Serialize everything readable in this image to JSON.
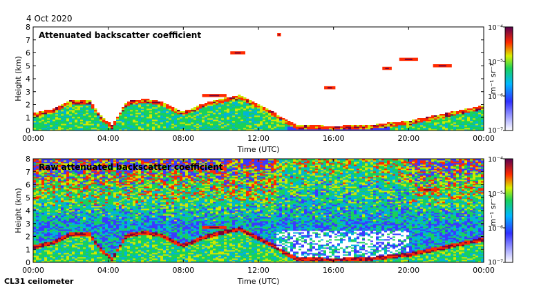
{
  "date": "4 Oct 2020",
  "footer": "CL31 ceilometer",
  "palette": [
    "#ffffff",
    "#3a3aff",
    "#00b4d8",
    "#19d15a",
    "#cfe800",
    "#ff2a00",
    "#7a0035"
  ],
  "chart_data": [
    {
      "type": "heatmap",
      "title": "Attenuated backscatter coefficient",
      "xlabel": "Time (UTC)",
      "ylabel": "Height (km)",
      "xlim": [
        0,
        24
      ],
      "ylim": [
        0,
        8
      ],
      "x_ticks": [
        "00:00",
        "04:00",
        "08:00",
        "12:00",
        "16:00",
        "20:00",
        "00:00"
      ],
      "y_ticks": [
        "0",
        "1",
        "2",
        "3",
        "4",
        "5",
        "6",
        "7",
        "8"
      ],
      "colorbar": {
        "label": "m⁻¹ sr⁻¹",
        "scale": "log",
        "ticks": [
          "10⁻⁴",
          "10⁻⁵",
          "10⁻⁶",
          "10⁻⁷"
        ],
        "range": [
          1e-07,
          0.0001
        ]
      },
      "boundary_layer_top_km": [
        [
          0,
          1.3
        ],
        [
          1,
          1.6
        ],
        [
          2,
          2.3
        ],
        [
          3,
          2.3
        ],
        [
          3.6,
          1.1
        ],
        [
          4.2,
          0.4
        ],
        [
          5,
          2.2
        ],
        [
          6,
          2.4
        ],
        [
          6.8,
          2.2
        ],
        [
          8,
          1.4
        ],
        [
          9,
          2.0
        ],
        [
          10,
          2.4
        ],
        [
          11,
          2.7
        ],
        [
          12,
          2.0
        ],
        [
          13,
          1.2
        ],
        [
          14,
          0.4
        ],
        [
          16,
          0.3
        ],
        [
          18,
          0.4
        ],
        [
          20,
          0.7
        ],
        [
          22,
          1.3
        ],
        [
          24,
          1.9
        ]
      ],
      "cloud_layers": [
        {
          "time_range": [
            10.5,
            11.3
          ],
          "height_km": 6.0
        },
        {
          "time_range": [
            13.0,
            13.2
          ],
          "height_km": 7.4
        },
        {
          "time_range": [
            19.5,
            20.5
          ],
          "height_km": 5.5
        },
        {
          "time_range": [
            21.3,
            22.3
          ],
          "height_km": 5.0
        },
        {
          "time_range": [
            18.6,
            19.1
          ],
          "height_km": 4.8
        },
        {
          "time_range": [
            9.0,
            10.3
          ],
          "height_km": 2.7
        },
        {
          "time_range": [
            15.5,
            16.1
          ],
          "height_km": 3.3
        }
      ]
    },
    {
      "type": "heatmap",
      "title": "Raw attenuated backscatter coefficient",
      "xlabel": "Time (UTC)",
      "ylabel": "Height (km)",
      "xlim": [
        0,
        24
      ],
      "ylim": [
        0,
        8
      ],
      "x_ticks": [
        "00:00",
        "04:00",
        "08:00",
        "12:00",
        "16:00",
        "20:00",
        "00:00"
      ],
      "y_ticks": [
        "0",
        "1",
        "2",
        "3",
        "4",
        "5",
        "6",
        "7",
        "8"
      ],
      "colorbar": {
        "label": "m⁻¹ sr⁻¹",
        "scale": "log",
        "ticks": [
          "10⁻⁴",
          "10⁻⁵",
          "10⁻⁶",
          "10⁻⁷"
        ],
        "range": [
          1e-07,
          0.0001
        ]
      },
      "boundary_layer_top_km": [
        [
          0,
          1.3
        ],
        [
          1,
          1.6
        ],
        [
          2,
          2.3
        ],
        [
          3,
          2.3
        ],
        [
          3.6,
          1.1
        ],
        [
          4.2,
          0.4
        ],
        [
          5,
          2.2
        ],
        [
          6,
          2.4
        ],
        [
          6.8,
          2.2
        ],
        [
          8,
          1.4
        ],
        [
          9,
          2.0
        ],
        [
          10,
          2.4
        ],
        [
          11,
          2.7
        ],
        [
          12,
          2.0
        ],
        [
          13,
          1.2
        ],
        [
          14,
          0.4
        ],
        [
          16,
          0.3
        ],
        [
          18,
          0.4
        ],
        [
          20,
          0.7
        ],
        [
          22,
          1.3
        ],
        [
          24,
          1.9
        ]
      ],
      "cloud_layers": [
        {
          "time_range": [
            9.0,
            10.3
          ],
          "height_km": 2.7
        },
        {
          "time_range": [
            20.5,
            21.5
          ],
          "height_km": 5.6
        }
      ]
    }
  ]
}
